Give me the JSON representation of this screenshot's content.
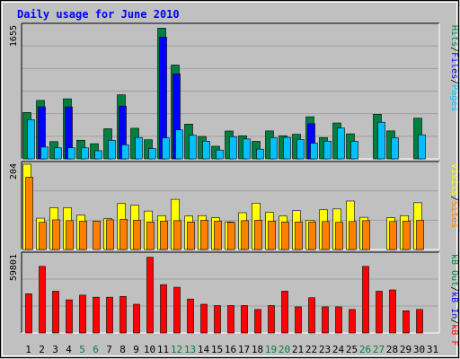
{
  "title": "Daily usage for June 2010",
  "colors": {
    "background": "#c0c0c0",
    "plot_background": "#c0c0c0",
    "title_text": "#0000ff",
    "grid": "#a0a0a0",
    "axis_dark": "#000000",
    "axis_light": "#ffffff",
    "hits": "#008040",
    "files": "#0000ff",
    "pages": "#00c0ff",
    "visits": "#ffff00",
    "sites": "#ff8000",
    "kb_f": "#ff0000",
    "kb_in": "#0000ff",
    "kb_out": "#008040",
    "weekday_label": "#000000",
    "weekend_label": "#008040"
  },
  "chart_data": [
    {
      "type": "bar",
      "panel": "top",
      "ymax": 1655,
      "ytick_label": "1655",
      "legend": [
        {
          "text": "Pages",
          "color_key": "pages"
        },
        {
          "text": "/",
          "color_key": "axis_dark"
        },
        {
          "text": "Files",
          "color_key": "files"
        },
        {
          "text": "/",
          "color_key": "axis_dark"
        },
        {
          "text": "Hits",
          "color_key": "hits"
        }
      ],
      "series": [
        {
          "name": "Hits",
          "color_key": "hits",
          "values": [
            578,
            728,
            215,
            748,
            232,
            189,
            375,
            798,
            381,
            238,
            1628,
            1169,
            433,
            279,
            157,
            347,
            288,
            218,
            348,
            288,
            307,
            525,
            266,
            447,
            312,
            0,
            555,
            348,
            0,
            507,
            0
          ]
        },
        {
          "name": "Files",
          "color_key": "files",
          "values": [
            0,
            648,
            0,
            648,
            0,
            0,
            0,
            658,
            0,
            0,
            1517,
            1059,
            0,
            0,
            0,
            0,
            0,
            0,
            0,
            0,
            0,
            438,
            0,
            0,
            0,
            0,
            0,
            0,
            0,
            0,
            0
          ]
        },
        {
          "name": "Pages",
          "color_key": "pages",
          "values": [
            488,
            147,
            137,
            137,
            137,
            101,
            230,
            175,
            266,
            128,
            262,
            361,
            294,
            220,
            110,
            277,
            248,
            121,
            264,
            268,
            240,
            195,
            220,
            384,
            218,
            0,
            456,
            263,
            0,
            300,
            0
          ]
        }
      ]
    },
    {
      "type": "bar",
      "panel": "middle",
      "ymax": 204,
      "ytick_label": "204",
      "legend": [
        {
          "text": "Sites",
          "color_key": "sites"
        },
        {
          "text": "/",
          "color_key": "axis_dark"
        },
        {
          "text": "Visits",
          "color_key": "visits"
        }
      ],
      "series": [
        {
          "name": "Visits",
          "color_key": "visits",
          "values": [
            204,
            75,
            100,
            100,
            82,
            0,
            74,
            110,
            106,
            92,
            81,
            120,
            80,
            81,
            76,
            66,
            88,
            111,
            89,
            80,
            93,
            70,
            95,
            97,
            116,
            77,
            0,
            76,
            81,
            112,
            0
          ]
        },
        {
          "name": "Sites",
          "color_key": "sites",
          "values": [
            173,
            65,
            71,
            69,
            68,
            68,
            71,
            72,
            70,
            66,
            68,
            69,
            66,
            70,
            68,
            65,
            69,
            70,
            68,
            66,
            66,
            66,
            67,
            65,
            67,
            69,
            0,
            67,
            68,
            70,
            0
          ]
        }
      ]
    },
    {
      "type": "bar",
      "panel": "bottom",
      "ymax": 59801,
      "ytick_label": "59801",
      "legend": [
        {
          "text": "kB F",
          "color_key": "kb_f"
        },
        {
          "text": "/",
          "color_key": "axis_dark"
        },
        {
          "text": "kB In",
          "color_key": "kb_in"
        },
        {
          "text": "/",
          "color_key": "axis_dark"
        },
        {
          "text": "kB Out",
          "color_key": "kb_out"
        }
      ],
      "series": [
        {
          "name": "kB F",
          "color_key": "kb_f",
          "values": [
            30000,
            51000,
            31975,
            25376,
            29000,
            27391,
            27391,
            28000,
            22000,
            58000,
            37000,
            35000,
            26000,
            22000,
            21000,
            21000,
            21000,
            18000,
            21000,
            32000,
            20000,
            27000,
            20000,
            20000,
            18000,
            51000,
            31975,
            33000,
            17000,
            18000,
            0
          ]
        }
      ]
    }
  ],
  "x_axis": {
    "labels": [
      {
        "text": "1",
        "weekend": false
      },
      {
        "text": "2",
        "weekend": false
      },
      {
        "text": "3",
        "weekend": false
      },
      {
        "text": "4",
        "weekend": false
      },
      {
        "text": "5",
        "weekend": true
      },
      {
        "text": "6",
        "weekend": true
      },
      {
        "text": "7",
        "weekend": false
      },
      {
        "text": "8",
        "weekend": false
      },
      {
        "text": "9",
        "weekend": false
      },
      {
        "text": "10",
        "weekend": false
      },
      {
        "text": "11",
        "weekend": false
      },
      {
        "text": "12",
        "weekend": true
      },
      {
        "text": "13",
        "weekend": true
      },
      {
        "text": "14",
        "weekend": false
      },
      {
        "text": "15",
        "weekend": false
      },
      {
        "text": "16",
        "weekend": false
      },
      {
        "text": "17",
        "weekend": false
      },
      {
        "text": "18",
        "weekend": false
      },
      {
        "text": "19",
        "weekend": true
      },
      {
        "text": "20",
        "weekend": true
      },
      {
        "text": "21",
        "weekend": false
      },
      {
        "text": "22",
        "weekend": false
      },
      {
        "text": "23",
        "weekend": false
      },
      {
        "text": "24",
        "weekend": false
      },
      {
        "text": "25",
        "weekend": false
      },
      {
        "text": "26",
        "weekend": true
      },
      {
        "text": "27",
        "weekend": true
      },
      {
        "text": "28",
        "weekend": false
      },
      {
        "text": "29",
        "weekend": false
      },
      {
        "text": "30",
        "weekend": false
      },
      {
        "text": "31",
        "weekend": false
      }
    ]
  }
}
